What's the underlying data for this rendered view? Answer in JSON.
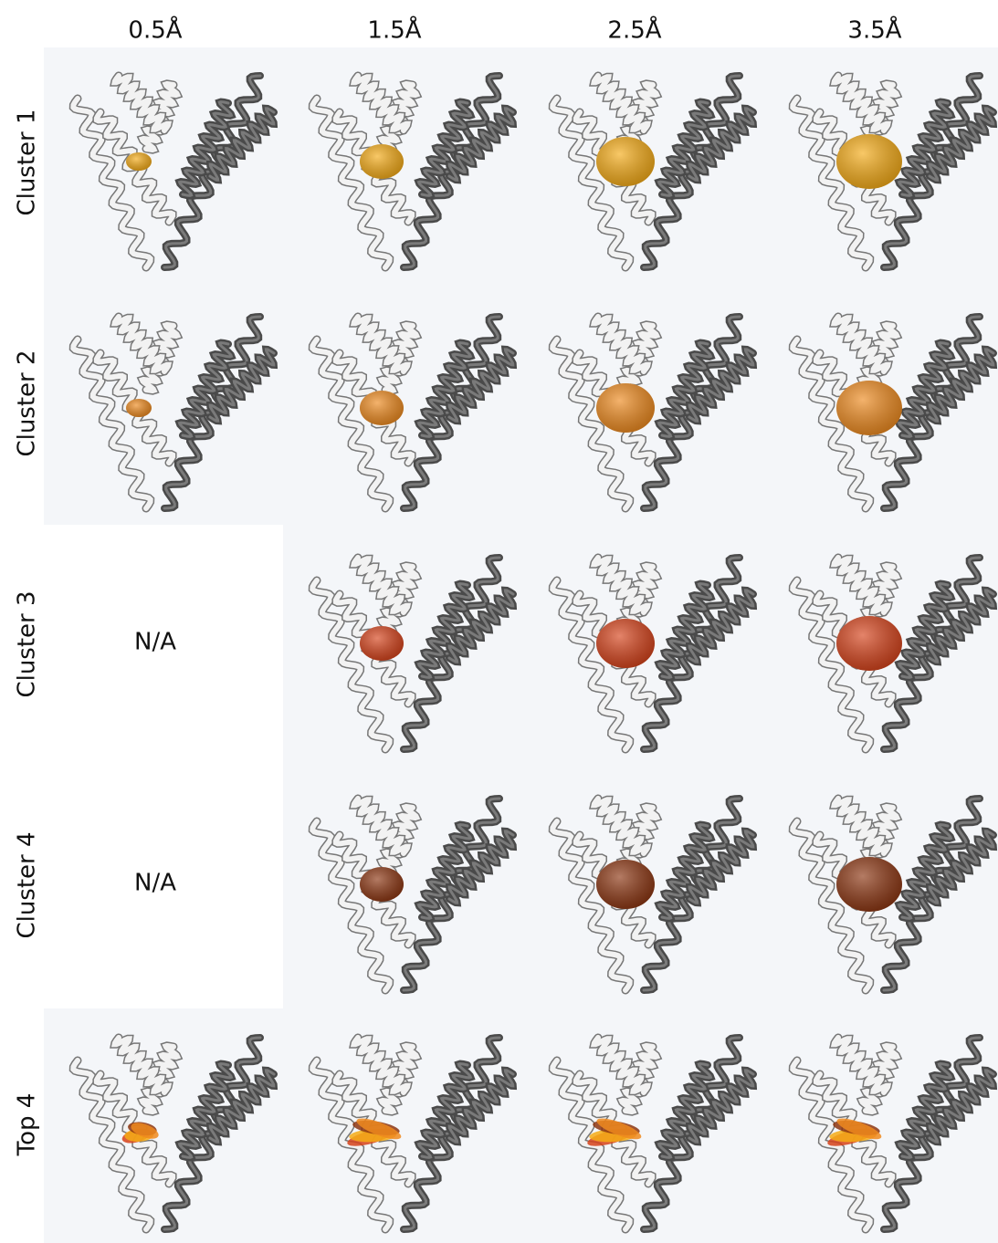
{
  "columns": [
    "0.5Å",
    "1.5Å",
    "2.5Å",
    "3.5Å"
  ],
  "rows": [
    {
      "label": "Cluster 1"
    },
    {
      "label": "Cluster 2"
    },
    {
      "label": "Cluster 3",
      "first_cell": "N/A"
    },
    {
      "label": "Cluster 4",
      "first_cell": "N/A"
    },
    {
      "label": "Top 4"
    }
  ]
}
